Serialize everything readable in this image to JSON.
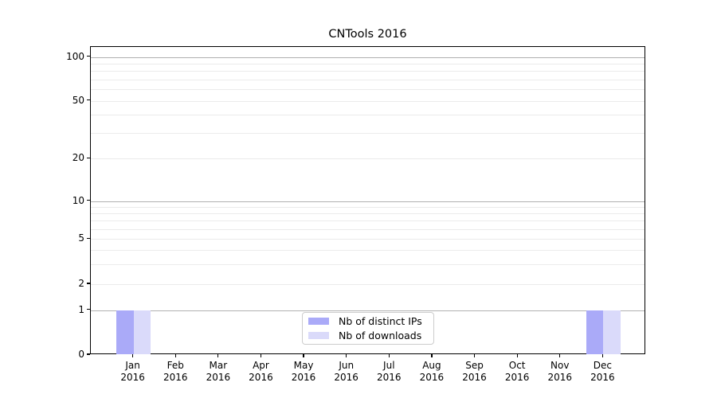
{
  "chart_data": {
    "type": "bar",
    "title": "CNTools 2016",
    "categories": [
      "Jan",
      "Feb",
      "Mar",
      "Apr",
      "May",
      "Jun",
      "Jul",
      "Aug",
      "Sep",
      "Oct",
      "Nov",
      "Dec"
    ],
    "x_year_label": "2016",
    "series": [
      {
        "name": "Nb of distinct IPs",
        "color": "#aaaaf8",
        "values": [
          1,
          0,
          0,
          0,
          0,
          0,
          0,
          0,
          0,
          0,
          0,
          1
        ]
      },
      {
        "name": "Nb of downloads",
        "color": "#dadafa",
        "values": [
          1,
          0,
          0,
          0,
          0,
          0,
          0,
          0,
          0,
          0,
          0,
          1
        ]
      }
    ],
    "xlabel": "",
    "ylabel": "",
    "yscale": "log-like",
    "ylim": [
      0,
      110
    ],
    "y_ticks": [
      0,
      1,
      2,
      5,
      10,
      20,
      50,
      100
    ],
    "y_major_gridlines": [
      1,
      10,
      100
    ],
    "y_minor_gridlines": [
      2,
      3,
      4,
      5,
      6,
      7,
      8,
      9,
      20,
      30,
      40,
      50,
      60,
      70,
      80,
      90
    ],
    "grid": true,
    "legend_position": "lower center"
  },
  "colors": {
    "background": "#ffffff",
    "axis": "#000000",
    "major_grid": "#b0b0b0",
    "minor_grid": "#ebebeb",
    "legend_border": "#cccccc",
    "text": "#000000"
  }
}
